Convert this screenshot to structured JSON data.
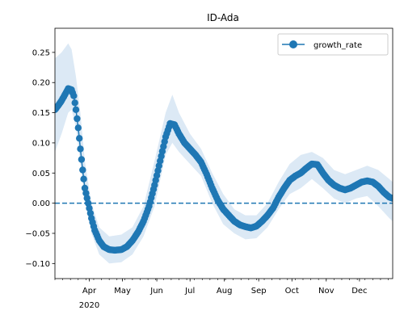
{
  "chart_data": {
    "type": "line",
    "title": "ID-Ada",
    "xlabel": "",
    "ylabel": "",
    "x_start": "2020-03-01",
    "x_end": "2020-12-31",
    "x_ticks": [
      {
        "date": "2020-04-01",
        "label": "Apr"
      },
      {
        "date": "2020-05-01",
        "label": "May"
      },
      {
        "date": "2020-06-01",
        "label": "Jun"
      },
      {
        "date": "2020-07-01",
        "label": "Jul"
      },
      {
        "date": "2020-08-01",
        "label": "Aug"
      },
      {
        "date": "2020-09-01",
        "label": "Sep"
      },
      {
        "date": "2020-10-01",
        "label": "Oct"
      },
      {
        "date": "2020-11-01",
        "label": "Nov"
      },
      {
        "date": "2020-12-01",
        "label": "Dec"
      }
    ],
    "x_year_label": "2020",
    "y_ticks": [
      -0.1,
      -0.05,
      0.0,
      0.05,
      0.1,
      0.15,
      0.2,
      0.25
    ],
    "y_tick_labels": [
      "−0.10",
      "−0.05",
      "0.00",
      "0.05",
      "0.10",
      "0.15",
      "0.20",
      "0.25"
    ],
    "ylim": [
      -0.125,
      0.29
    ],
    "reference_line": 0.0,
    "legend": {
      "position": "top-right",
      "label": "growth_rate"
    },
    "colors": {
      "line": "#1f77b4",
      "band": "#dce9f5",
      "axis": "#000000"
    },
    "series": [
      {
        "name": "growth_rate",
        "points": [
          [
            "2020-03-01",
            0.155
          ],
          [
            "2020-03-04",
            0.162
          ],
          [
            "2020-03-07",
            0.17
          ],
          [
            "2020-03-10",
            0.18
          ],
          [
            "2020-03-13",
            0.19
          ],
          [
            "2020-03-16",
            0.188
          ],
          [
            "2020-03-18",
            0.178
          ],
          [
            "2020-03-20",
            0.155
          ],
          [
            "2020-03-22",
            0.125
          ],
          [
            "2020-03-24",
            0.09
          ],
          [
            "2020-03-26",
            0.055
          ],
          [
            "2020-03-28",
            0.025
          ],
          [
            "2020-03-31",
            0.0
          ],
          [
            "2020-04-03",
            -0.025
          ],
          [
            "2020-04-06",
            -0.045
          ],
          [
            "2020-04-10",
            -0.062
          ],
          [
            "2020-04-14",
            -0.072
          ],
          [
            "2020-04-19",
            -0.077
          ],
          [
            "2020-04-24",
            -0.078
          ],
          [
            "2020-04-30",
            -0.077
          ],
          [
            "2020-05-05",
            -0.072
          ],
          [
            "2020-05-10",
            -0.062
          ],
          [
            "2020-05-15",
            -0.048
          ],
          [
            "2020-05-20",
            -0.03
          ],
          [
            "2020-05-25",
            -0.005
          ],
          [
            "2020-05-30",
            0.03
          ],
          [
            "2020-06-04",
            0.07
          ],
          [
            "2020-06-09",
            0.11
          ],
          [
            "2020-06-13",
            0.132
          ],
          [
            "2020-06-17",
            0.13
          ],
          [
            "2020-06-21",
            0.115
          ],
          [
            "2020-06-26",
            0.1
          ],
          [
            "2020-07-01",
            0.09
          ],
          [
            "2020-07-06",
            0.08
          ],
          [
            "2020-07-11",
            0.068
          ],
          [
            "2020-07-16",
            0.048
          ],
          [
            "2020-07-21",
            0.025
          ],
          [
            "2020-07-26",
            0.005
          ],
          [
            "2020-07-31",
            -0.01
          ],
          [
            "2020-08-05",
            -0.02
          ],
          [
            "2020-08-10",
            -0.03
          ],
          [
            "2020-08-15",
            -0.036
          ],
          [
            "2020-08-20",
            -0.039
          ],
          [
            "2020-08-25",
            -0.041
          ],
          [
            "2020-08-30",
            -0.038
          ],
          [
            "2020-09-04",
            -0.03
          ],
          [
            "2020-09-09",
            -0.02
          ],
          [
            "2020-09-14",
            -0.008
          ],
          [
            "2020-09-19",
            0.01
          ],
          [
            "2020-09-24",
            0.025
          ],
          [
            "2020-09-29",
            0.038
          ],
          [
            "2020-10-04",
            0.045
          ],
          [
            "2020-10-09",
            0.05
          ],
          [
            "2020-10-14",
            0.058
          ],
          [
            "2020-10-19",
            0.065
          ],
          [
            "2020-10-24",
            0.064
          ],
          [
            "2020-10-29",
            0.05
          ],
          [
            "2020-11-03",
            0.038
          ],
          [
            "2020-11-08",
            0.03
          ],
          [
            "2020-11-13",
            0.025
          ],
          [
            "2020-11-18",
            0.022
          ],
          [
            "2020-11-23",
            0.025
          ],
          [
            "2020-11-28",
            0.03
          ],
          [
            "2020-12-03",
            0.035
          ],
          [
            "2020-12-08",
            0.037
          ],
          [
            "2020-12-13",
            0.035
          ],
          [
            "2020-12-18",
            0.028
          ],
          [
            "2020-12-23",
            0.018
          ],
          [
            "2020-12-28",
            0.01
          ],
          [
            "2020-12-31",
            0.008
          ]
        ],
        "band": [
          [
            "2020-03-01",
            0.085,
            0.24
          ],
          [
            "2020-03-07",
            0.115,
            0.25
          ],
          [
            "2020-03-13",
            0.15,
            0.265
          ],
          [
            "2020-03-16",
            0.155,
            0.255
          ],
          [
            "2020-03-20",
            0.125,
            0.21
          ],
          [
            "2020-03-24",
            0.065,
            0.15
          ],
          [
            "2020-03-28",
            0.005,
            0.07
          ],
          [
            "2020-04-03",
            -0.05,
            0.0
          ],
          [
            "2020-04-10",
            -0.085,
            -0.04
          ],
          [
            "2020-04-19",
            -0.1,
            -0.055
          ],
          [
            "2020-04-30",
            -0.098,
            -0.052
          ],
          [
            "2020-05-10",
            -0.085,
            -0.04
          ],
          [
            "2020-05-20",
            -0.055,
            -0.005
          ],
          [
            "2020-05-30",
            -0.005,
            0.07
          ],
          [
            "2020-06-09",
            0.08,
            0.15
          ],
          [
            "2020-06-15",
            0.1,
            0.18
          ],
          [
            "2020-06-21",
            0.085,
            0.15
          ],
          [
            "2020-07-01",
            0.065,
            0.115
          ],
          [
            "2020-07-11",
            0.045,
            0.09
          ],
          [
            "2020-07-21",
            0.0,
            0.05
          ],
          [
            "2020-07-31",
            -0.035,
            0.015
          ],
          [
            "2020-08-10",
            -0.05,
            -0.01
          ],
          [
            "2020-08-20",
            -0.06,
            -0.02
          ],
          [
            "2020-08-30",
            -0.058,
            -0.02
          ],
          [
            "2020-09-09",
            -0.04,
            0.0
          ],
          [
            "2020-09-19",
            -0.01,
            0.035
          ],
          [
            "2020-09-29",
            0.015,
            0.065
          ],
          [
            "2020-10-09",
            0.025,
            0.08
          ],
          [
            "2020-10-19",
            0.04,
            0.085
          ],
          [
            "2020-10-29",
            0.025,
            0.075
          ],
          [
            "2020-11-08",
            0.008,
            0.055
          ],
          [
            "2020-11-18",
            0.0,
            0.048
          ],
          [
            "2020-11-28",
            0.008,
            0.055
          ],
          [
            "2020-12-08",
            0.012,
            0.062
          ],
          [
            "2020-12-18",
            -0.005,
            0.055
          ],
          [
            "2020-12-28",
            -0.025,
            0.04
          ],
          [
            "2020-12-31",
            -0.03,
            0.035
          ]
        ]
      }
    ]
  }
}
